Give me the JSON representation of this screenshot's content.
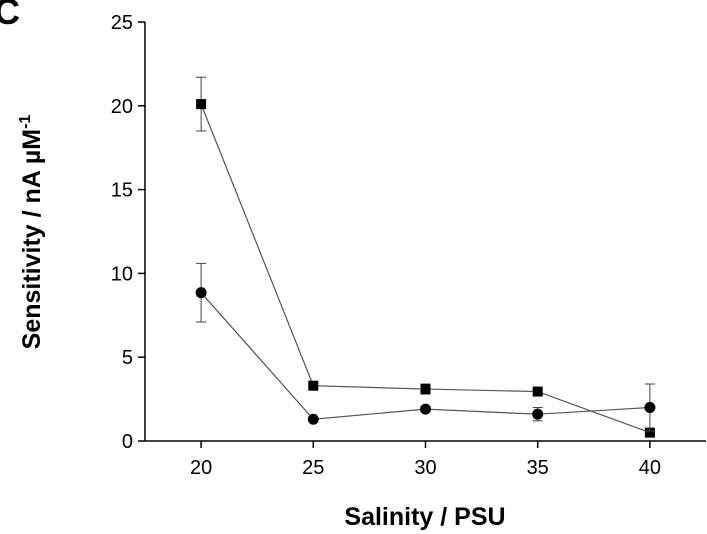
{
  "chart_data": {
    "type": "line",
    "panel_label": "C",
    "xlabel": "Salinity / PSU",
    "ylabel": "Sensitivity / nA µM",
    "ylabel_sup": "-1",
    "x": [
      20,
      25,
      30,
      35,
      40
    ],
    "series": [
      {
        "marker": "square",
        "color": "#000000",
        "values": [
          20.1,
          3.3,
          3.1,
          2.95,
          0.5
        ],
        "errors": [
          1.6,
          0.1,
          0.3,
          0.15,
          0.1
        ]
      },
      {
        "marker": "circle",
        "color": "#000000",
        "values": [
          8.85,
          1.3,
          1.9,
          1.6,
          2.0
        ],
        "errors": [
          1.75,
          0.1,
          0.15,
          0.4,
          1.4
        ]
      }
    ],
    "xlim": [
      17.5,
      42.5
    ],
    "xticks": [
      20,
      25,
      30,
      35,
      40
    ],
    "ylim": [
      0,
      25
    ],
    "yticks": [
      0,
      5,
      10,
      15,
      20,
      25
    ]
  }
}
